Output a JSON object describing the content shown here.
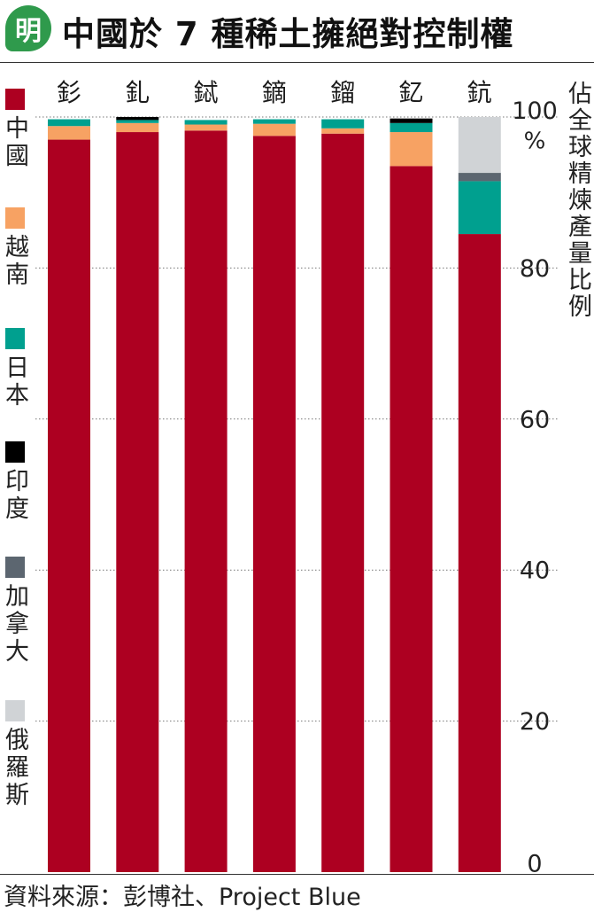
{
  "header": {
    "logo_text": "明",
    "title": "中國於 7 種稀土擁絕對控制權"
  },
  "source": "資料來源：彭博社、Project Blue",
  "colors": {
    "logo": "#2f9a4c",
    "中國": "#ad0021",
    "越南": "#f7a263",
    "日本": "#00a08f",
    "印度": "#000000",
    "加拿大": "#5c6670",
    "俄羅斯": "#d0d3d6"
  },
  "chart_data": {
    "type": "bar",
    "stacked": true,
    "title": "中國於 7 種稀土擁絕對控制權",
    "ylabel": "佔全球精煉產量比例",
    "yunit": "%",
    "ylim": [
      0,
      100
    ],
    "yticks": [
      0,
      20,
      40,
      60,
      80,
      100
    ],
    "grid": true,
    "legend_position": "left",
    "categories": [
      "釤",
      "釓",
      "鋱",
      "鏑",
      "鎦",
      "釔",
      "鈧"
    ],
    "series": [
      {
        "name": "中國",
        "values": [
          97.0,
          98.0,
          98.2,
          97.5,
          97.8,
          93.5,
          84.5
        ]
      },
      {
        "name": "越南",
        "values": [
          1.8,
          1.2,
          0.8,
          1.6,
          0.7,
          4.5,
          0
        ]
      },
      {
        "name": "日本",
        "values": [
          0.9,
          0.4,
          0.6,
          0.6,
          1.2,
          1.2,
          7.0
        ]
      },
      {
        "name": "印度",
        "values": [
          0,
          0.4,
          0,
          0,
          0,
          0.6,
          0
        ]
      },
      {
        "name": "加拿大",
        "values": [
          0,
          0,
          0,
          0,
          0,
          0,
          1.1
        ]
      },
      {
        "name": "俄羅斯",
        "values": [
          0,
          0,
          0,
          0,
          0,
          0,
          7.4
        ]
      }
    ]
  }
}
